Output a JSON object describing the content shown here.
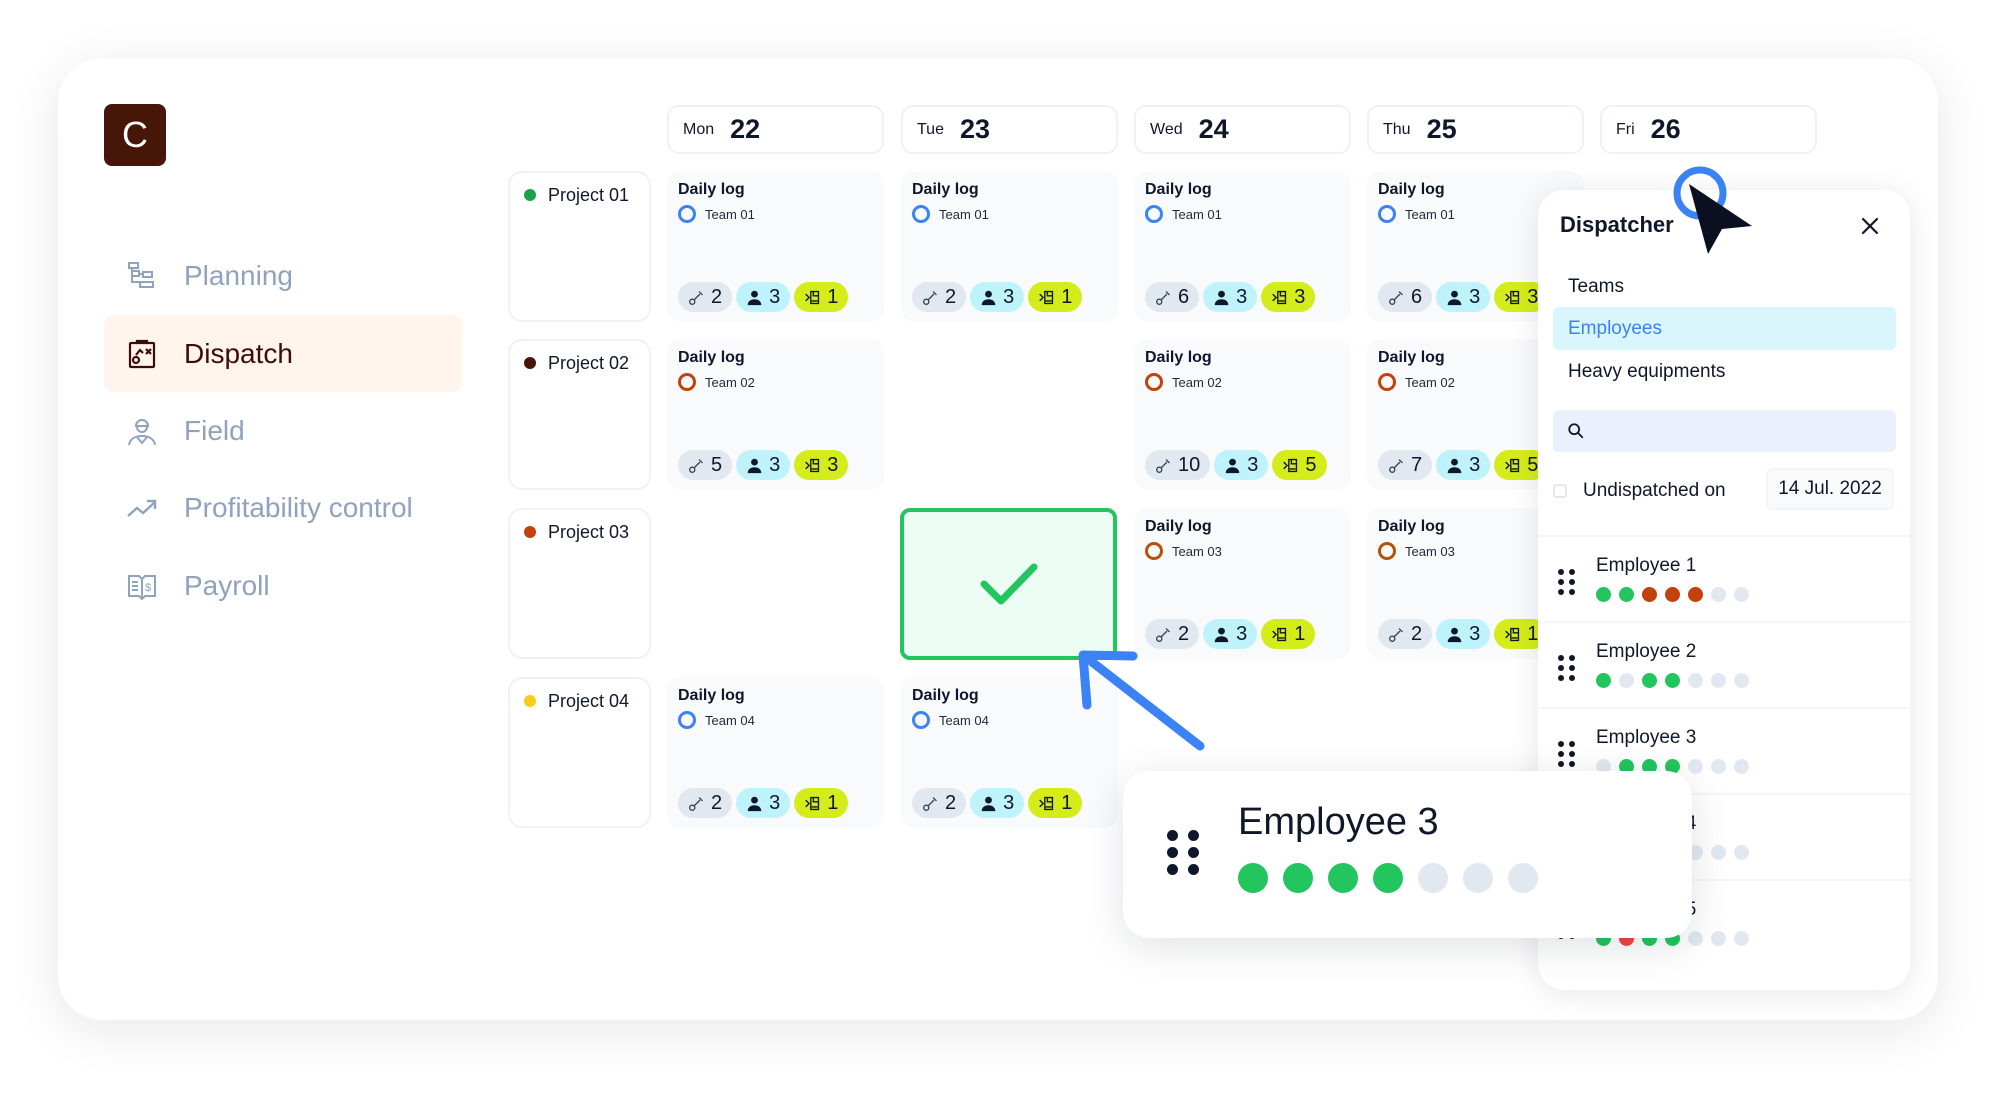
{
  "logo": "C",
  "nav": [
    {
      "label": "Planning",
      "icon": "planning-icon",
      "active": false
    },
    {
      "label": "Dispatch",
      "icon": "dispatch-clipboard-icon",
      "active": true
    },
    {
      "label": "Field",
      "icon": "worker-icon",
      "active": false
    },
    {
      "label": "Profitability control",
      "icon": "trend-up-icon",
      "active": false
    },
    {
      "label": "Payroll",
      "icon": "payroll-book-icon",
      "active": false
    }
  ],
  "days": [
    {
      "name": "Mon",
      "date": "22"
    },
    {
      "name": "Tue",
      "date": "23"
    },
    {
      "name": "Wed",
      "date": "24"
    },
    {
      "name": "Thu",
      "date": "25"
    },
    {
      "name": "Fri",
      "date": "26"
    }
  ],
  "colors": {
    "team_blue": "#3b82f6",
    "team_red": "#c2410c",
    "team_amber": "#b45309",
    "green": "#22c55e",
    "orange": "#c2410c",
    "red": "#ef4444",
    "gray": "#e2e8f0",
    "tool_badge": "#e2e8f0",
    "people_badge": "#bff3fb",
    "equipment_badge": "#d4ec1a"
  },
  "projects": [
    {
      "name": "Project 01",
      "color": "#16a34a",
      "cells": [
        {
          "title": "Daily log",
          "team": "Team 01",
          "ring": "#3b82f6",
          "tools": "2",
          "people": "3",
          "equipment": "1"
        },
        {
          "title": "Daily log",
          "team": "Team 01",
          "ring": "#3b82f6",
          "tools": "2",
          "people": "3",
          "equipment": "1"
        },
        {
          "title": "Daily log",
          "team": "Team 01",
          "ring": "#3b82f6",
          "tools": "6",
          "people": "3",
          "equipment": "3"
        },
        {
          "title": "Daily log",
          "team": "Team 01",
          "ring": "#3b82f6",
          "tools": "6",
          "people": "3",
          "equipment": "3"
        },
        null
      ]
    },
    {
      "name": "Project 02",
      "color": "#461608",
      "cells": [
        {
          "title": "Daily log",
          "team": "Team 02",
          "ring": "#c2410c",
          "tools": "5",
          "people": "3",
          "equipment": "3"
        },
        null,
        {
          "title": "Daily log",
          "team": "Team 02",
          "ring": "#c2410c",
          "tools": "10",
          "people": "3",
          "equipment": "5"
        },
        {
          "title": "Daily log",
          "team": "Team 02",
          "ring": "#c2410c",
          "tools": "7",
          "people": "3",
          "equipment": "5"
        },
        null
      ]
    },
    {
      "name": "Project 03",
      "color": "#c2410c",
      "cells": [
        null,
        "drop",
        {
          "title": "Daily log",
          "team": "Team 03",
          "ring": "#b45309",
          "tools": "2",
          "people": "3",
          "equipment": "1"
        },
        {
          "title": "Daily log",
          "team": "Team 03",
          "ring": "#b45309",
          "tools": "2",
          "people": "3",
          "equipment": "1"
        },
        null
      ]
    },
    {
      "name": "Project 04",
      "color": "#facc15",
      "cells": [
        {
          "title": "Daily log",
          "team": "Team 04",
          "ring": "#3b82f6",
          "tools": "2",
          "people": "3",
          "equipment": "1"
        },
        {
          "title": "Daily log",
          "team": "Team 04",
          "ring": "#3b82f6",
          "tools": "2",
          "people": "3",
          "equipment": "1"
        },
        null,
        null,
        null
      ]
    }
  ],
  "dispatcher": {
    "title": "Dispatcher",
    "tabs": [
      {
        "label": "Teams",
        "selected": false
      },
      {
        "label": "Employees",
        "selected": true
      },
      {
        "label": "Heavy equipments",
        "selected": false
      }
    ],
    "search_placeholder": "",
    "undispatched_label": "Undispatched on",
    "undispatched_checked": false,
    "date": "14 Jul. 2022",
    "employees": [
      {
        "name": "Employee 1",
        "days": [
          "green",
          "green",
          "orange",
          "orange",
          "orange",
          "gray",
          "gray"
        ]
      },
      {
        "name": "Employee 2",
        "days": [
          "green",
          "gray",
          "green",
          "green",
          "gray",
          "gray",
          "gray"
        ]
      },
      {
        "name": "Employee 3",
        "days": [
          "gray",
          "green",
          "green",
          "green",
          "gray",
          "gray",
          "gray"
        ]
      },
      {
        "name": "Employee 4",
        "days": [
          "gray",
          "gray",
          "gray",
          "gray",
          "gray",
          "gray",
          "gray"
        ]
      },
      {
        "name": "Employee 5",
        "days": [
          "green",
          "red",
          "green",
          "green",
          "gray",
          "gray",
          "gray"
        ]
      }
    ]
  },
  "dragged": {
    "name": "Employee 3",
    "days": [
      "green",
      "green",
      "green",
      "green",
      "gray",
      "gray",
      "gray"
    ]
  }
}
